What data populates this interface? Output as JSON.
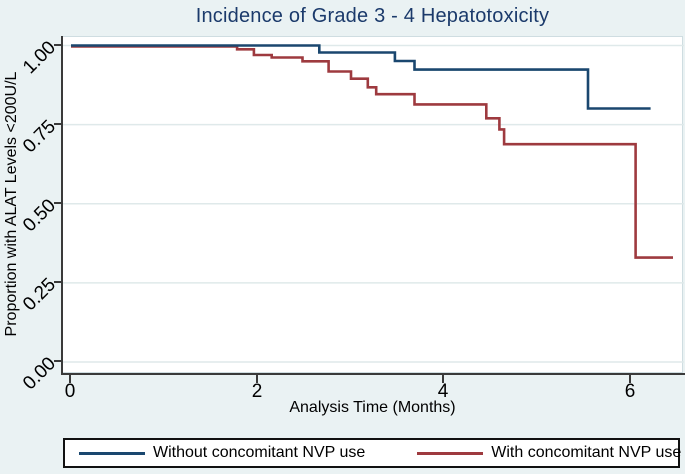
{
  "window": {
    "background_color": "#eaf2f3",
    "plot_background_color": "#ffffff"
  },
  "chart_data": {
    "type": "line",
    "subtype": "kaplan-meier-step",
    "title": "Incidence of Grade 3 - 4 Hepatotoxicity",
    "title_color": "#1b3a6b",
    "xlabel": "Analysis Time (Months)",
    "ylabel": "Proportion with ALAT Levels <200U/L",
    "xlim": [
      0,
      6.6
    ],
    "ylim": [
      0.0,
      1.0
    ],
    "xticks": [
      0,
      2,
      4,
      6
    ],
    "xtick_labels": [
      "0",
      "2",
      "4",
      "6"
    ],
    "yticks": [
      0.0,
      0.25,
      0.5,
      0.75,
      1.0
    ],
    "ytick_labels": [
      "0.00",
      "0.25",
      "0.50",
      "0.75",
      "1.00"
    ],
    "ytick_label_angle_deg": 45,
    "grid": "horizontal",
    "grid_color": "#dfe9ea",
    "axis_color": "#3a3a3a",
    "legend_position": "bottom",
    "series": [
      {
        "name": "Without concomitant NVP use",
        "color": "#1a476f",
        "end_time": 6.21,
        "steps": [
          [
            0,
            1.0
          ],
          [
            2.66,
            0.978
          ],
          [
            3.47,
            0.951
          ],
          [
            3.68,
            0.924
          ],
          [
            5.54,
            0.801
          ]
        ]
      },
      {
        "name": "With concomitant NVP use",
        "color": "#9e3a3f",
        "end_time": 6.45,
        "steps": [
          [
            0,
            1.0
          ],
          [
            1.78,
            0.988
          ],
          [
            1.96,
            0.97
          ],
          [
            2.15,
            0.962
          ],
          [
            2.48,
            0.95
          ],
          [
            2.76,
            0.918
          ],
          [
            3.0,
            0.895
          ],
          [
            3.18,
            0.868
          ],
          [
            3.27,
            0.846
          ],
          [
            3.68,
            0.814
          ],
          [
            4.45,
            0.77
          ],
          [
            4.59,
            0.735
          ],
          [
            4.64,
            0.688
          ],
          [
            6.05,
            0.33
          ]
        ]
      }
    ]
  }
}
